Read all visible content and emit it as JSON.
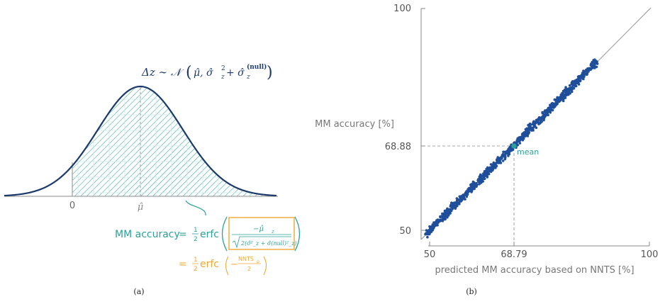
{
  "colors": {
    "curve": "#1b3a6b",
    "teal": "#2aa198",
    "orange": "#f0a830",
    "gray": "#8a8a8a",
    "points": "#1f4f9a",
    "mean_point": "#2aa198"
  },
  "panel_a": {
    "equation_lhs": "Δz ∼ 𝒩",
    "equation_args": "μ̂, σ̂",
    "equation_z_sub": "z",
    "equation_sq": "2",
    "equation_plus": " + σ̂",
    "equation_null": "(null)",
    "tick_zero": "0",
    "tick_mu": "μ̂",
    "mm_accuracy_label": "MM accuracy",
    "eq_sign": "=",
    "half_num": "1",
    "half_den": "2",
    "erfc": "erfc",
    "frac_num": "−μ̂",
    "frac_num_sub": "z",
    "frac_den": "2(σ̂²_z + σ̂(null)²_z)",
    "second_line": "= ½erfc(−NNTS",
    "second_sub": "p",
    "second_den": "2",
    "caption": "(a)"
  },
  "panel_b": {
    "y_title": "MM accuracy [%]",
    "x_title": "predicted MM accuracy based on NNTS [%]",
    "y_ticks": [
      "100",
      "68.88",
      "50"
    ],
    "x_ticks": [
      "50",
      "68.79",
      "100"
    ],
    "mean_label": "mean",
    "caption": "(b)"
  },
  "chart_data": {
    "type": "scatter",
    "xlabel": "predicted MM accuracy based on NNTS [%]",
    "ylabel": "MM accuracy [%]",
    "xlim": [
      48,
      100
    ],
    "ylim": [
      48,
      100
    ],
    "xticks": [
      50,
      68.79,
      100
    ],
    "yticks": [
      50,
      68.88,
      100
    ],
    "mean": {
      "x": 68.79,
      "y": 68.88,
      "label": "mean"
    },
    "diagonal": true,
    "points_range": {
      "from": 49,
      "to": 88
    },
    "grid": false
  }
}
